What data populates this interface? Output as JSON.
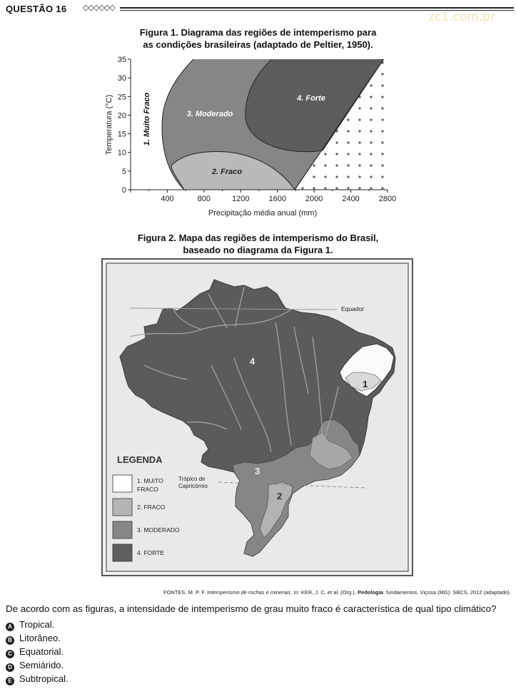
{
  "header": {
    "question_label": "QUESTÃO 16",
    "ornament": "◇◇◇◇◇◇"
  },
  "watermark": "zc1.com.br",
  "figure1": {
    "title_line1": "Figura 1. Diagrama das regiões de intemperismo para",
    "title_line2": "as condições brasileiras (adaptado de Peltier, 1950).",
    "chart_data": {
      "type": "area",
      "xlabel": "Precipitação média anual (mm)",
      "ylabel": "Temperatura (°C)",
      "x_ticks": [
        400,
        800,
        1200,
        1600,
        2000,
        2400,
        2800
      ],
      "y_ticks": [
        0,
        5,
        10,
        15,
        20,
        25,
        30,
        35
      ],
      "xlim": [
        0,
        2800
      ],
      "ylim": [
        0,
        35
      ],
      "regions": [
        {
          "label": "1. Muito Fraco",
          "fill": "#ffffff"
        },
        {
          "label": "2. Fraco",
          "fill": "#b9b9b9"
        },
        {
          "label": "3. Moderado",
          "fill": "#858585"
        },
        {
          "label": "4. Forte",
          "fill": "#5c5c5c"
        }
      ]
    }
  },
  "figure2": {
    "title_line1": "Figura 2. Mapa das regiões de intemperismo do Brasil,",
    "title_line2": "baseado no diagrama da Figura 1.",
    "equator_label": "Equador",
    "tropic_label_line1": "Trópico de",
    "tropic_label_line2": "Capricórnio",
    "region_numbers": [
      "1",
      "2",
      "3",
      "4"
    ],
    "legend": {
      "title": "LEGENDA",
      "items": [
        {
          "label_line1": "1. MUITO",
          "label_line2": "FRACO",
          "color": "#ffffff"
        },
        {
          "label_line1": "2. FRACO",
          "label_line2": "",
          "color": "#b5b5b5"
        },
        {
          "label_line1": "3. MODERADO",
          "label_line2": "",
          "color": "#878787"
        },
        {
          "label_line1": "4. FORTE",
          "label_line2": "",
          "color": "#5f5f5f"
        }
      ]
    }
  },
  "caption": {
    "prefix": "FONTES, M. P. F. ",
    "title": "Intemperismo de rochas e minerais",
    "middle": ". In: KER, J. C. et al. (Org.). ",
    "book": "Pedologia",
    "suffix": ": fundamentos. Viçosa (MG): SBCS, 2012 (adaptado)."
  },
  "question": "De acordo com as figuras, a intensidade de intemperismo de grau muito fraco é característica de qual tipo climático?",
  "options": [
    {
      "letter": "A",
      "text": "Tropical."
    },
    {
      "letter": "B",
      "text": "Litorâneo."
    },
    {
      "letter": "C",
      "text": "Equatorial."
    },
    {
      "letter": "D",
      "text": "Semiárido."
    },
    {
      "letter": "E",
      "text": "Subtropical."
    }
  ]
}
